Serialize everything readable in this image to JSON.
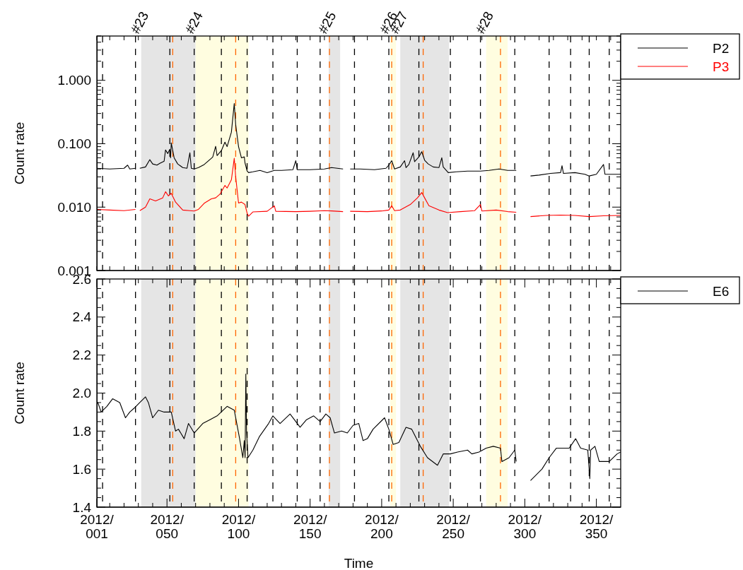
{
  "chart_data": [
    {
      "type": "line",
      "ylabel": "Count rate",
      "log": "y",
      "tick_labels": "y",
      "legend": "top right",
      "xlim": [
        "2012-01-01",
        "2013-01-01"
      ],
      "ylim": [
        0.001,
        5
      ],
      "xticks": [
        {
          "value": "2012-01-01",
          "label": null
        },
        {
          "value": "2012-01-10",
          "label": null
        },
        {
          "value": "2012-01-20",
          "label": null
        },
        {
          "value": "2012-01-30",
          "label": null
        },
        {
          "value": "2012-02-09",
          "label": null
        },
        {
          "value": "2012-02-19",
          "label": null
        },
        {
          "value": "2012-02-29",
          "label": null
        },
        {
          "value": "2012-03-10",
          "label": null
        },
        {
          "value": "2012-03-20",
          "label": null
        },
        {
          "value": "2012-03-30",
          "label": null
        },
        {
          "value": "2012-04-09",
          "label": null
        },
        {
          "value": "2012-04-19",
          "label": null
        },
        {
          "value": "2012-04-29",
          "label": null
        },
        {
          "value": "2012-05-09",
          "label": null
        },
        {
          "value": "2012-05-19",
          "label": null
        },
        {
          "value": "2012-05-29",
          "label": null
        },
        {
          "value": "2012-06-08",
          "label": null
        },
        {
          "value": "2012-06-18",
          "label": null
        },
        {
          "value": "2012-06-28",
          "label": null
        },
        {
          "value": "2012-07-08",
          "label": null
        },
        {
          "value": "2012-07-18",
          "label": null
        },
        {
          "value": "2012-07-28",
          "label": null
        },
        {
          "value": "2012-08-07",
          "label": null
        },
        {
          "value": "2012-08-17",
          "label": null
        },
        {
          "value": "2012-08-27",
          "label": null
        },
        {
          "value": "2012-09-06",
          "label": null
        },
        {
          "value": "2012-09-16",
          "label": null
        },
        {
          "value": "2012-09-26",
          "label": null
        },
        {
          "value": "2012-10-06",
          "label": null
        },
        {
          "value": "2012-10-16",
          "label": null
        },
        {
          "value": "2012-10-26",
          "label": null
        },
        {
          "value": "2012-11-05",
          "label": null
        },
        {
          "value": "2012-11-15",
          "label": null
        },
        {
          "value": "2012-11-25",
          "label": null
        },
        {
          "value": "2012-12-05",
          "label": null
        },
        {
          "value": "2012-12-15",
          "label": null
        },
        {
          "value": "2012-12-25",
          "label": null
        }
      ],
      "yticks": [
        {
          "value": 0.001,
          "label": "0.001"
        },
        {
          "value": 0.002,
          "label": null
        },
        {
          "value": 0.003,
          "label": null
        },
        {
          "value": 0.004,
          "label": null
        },
        {
          "value": 0.005,
          "label": null
        },
        {
          "value": 0.006,
          "label": null
        },
        {
          "value": 0.007,
          "label": null
        },
        {
          "value": 0.008,
          "label": null
        },
        {
          "value": 0.009,
          "label": null
        },
        {
          "value": 0.01,
          "label": "0.010"
        },
        {
          "value": 0.02,
          "label": null
        },
        {
          "value": 0.03,
          "label": null
        },
        {
          "value": 0.04,
          "label": null
        },
        {
          "value": 0.05,
          "label": null
        },
        {
          "value": 0.06,
          "label": null
        },
        {
          "value": 0.07,
          "label": null
        },
        {
          "value": 0.08,
          "label": null
        },
        {
          "value": 0.09,
          "label": null
        },
        {
          "value": 0.1,
          "label": "0.100"
        },
        {
          "value": 0.2,
          "label": null
        },
        {
          "value": 0.3,
          "label": null
        },
        {
          "value": 0.4,
          "label": null
        },
        {
          "value": 0.5,
          "label": null
        },
        {
          "value": 0.6,
          "label": null
        },
        {
          "value": 0.7,
          "label": null
        },
        {
          "value": 0.8,
          "label": null
        },
        {
          "value": 0.9,
          "label": null
        },
        {
          "value": 1,
          "label": "1.000"
        },
        {
          "value": 2,
          "label": null
        },
        {
          "value": 3,
          "label": null
        },
        {
          "value": 4,
          "label": null
        },
        {
          "value": 5,
          "label": null
        }
      ],
      "bands": [
        {
          "axis": "x",
          "from": "2012-02-01",
          "to": "2012-03-10",
          "label": "#23",
          "color": "#e5e5e5"
        },
        {
          "axis": "x",
          "from": "2012-03-10",
          "to": "2012-04-16",
          "label": "#24",
          "color": "#fffde0"
        },
        {
          "axis": "x",
          "from": "2012-06-11",
          "to": "2012-06-19",
          "label": "#25",
          "color": "#e5e5e5"
        },
        {
          "axis": "x",
          "from": "2012-07-24",
          "to": "2012-07-28",
          "label": "#26",
          "color": "#fffde0"
        },
        {
          "axis": "x",
          "from": "2012-07-31",
          "to": "2012-09-03",
          "label": "#27",
          "color": "#e5e5e5"
        },
        {
          "axis": "x",
          "from": "2012-09-29",
          "to": "2012-10-14",
          "label": "#28",
          "color": "#fffde0"
        }
      ],
      "ref_lines": [
        {
          "axis": "x",
          "value": "2012-01-05",
          "color": "#000000",
          "line_style": "dashed"
        },
        {
          "axis": "x",
          "value": "2012-01-28",
          "color": "#000000",
          "line_style": "dashed"
        },
        {
          "axis": "x",
          "value": "2012-02-21",
          "color": "#000000",
          "line_style": "dashed"
        },
        {
          "axis": "x",
          "value": "2012-03-09",
          "color": "#000000",
          "line_style": "dashed"
        },
        {
          "axis": "x",
          "value": "2012-03-28",
          "color": "#000000",
          "line_style": "dashed"
        },
        {
          "axis": "x",
          "value": "2012-04-15",
          "color": "#000000",
          "line_style": "dashed"
        },
        {
          "axis": "x",
          "value": "2012-05-03",
          "color": "#000000",
          "line_style": "dashed"
        },
        {
          "axis": "x",
          "value": "2012-05-20",
          "color": "#000000",
          "line_style": "dashed"
        },
        {
          "axis": "x",
          "value": "2012-06-05",
          "color": "#000000",
          "line_style": "dashed"
        },
        {
          "axis": "x",
          "value": "2012-06-29",
          "color": "#000000",
          "line_style": "dashed"
        },
        {
          "axis": "x",
          "value": "2012-07-23",
          "color": "#000000",
          "line_style": "dashed"
        },
        {
          "axis": "x",
          "value": "2012-08-13",
          "color": "#000000",
          "line_style": "dashed"
        },
        {
          "axis": "x",
          "value": "2012-09-04",
          "color": "#000000",
          "line_style": "dashed"
        },
        {
          "axis": "x",
          "value": "2012-09-25",
          "color": "#000000",
          "line_style": "dashed"
        },
        {
          "axis": "x",
          "value": "2012-10-19",
          "color": "#000000",
          "line_style": "dashed"
        },
        {
          "axis": "x",
          "value": "2012-11-12",
          "color": "#000000",
          "line_style": "dashed"
        },
        {
          "axis": "x",
          "value": "2012-11-27",
          "color": "#000000",
          "line_style": "dashed"
        },
        {
          "axis": "x",
          "value": "2012-12-10",
          "color": "#000000",
          "line_style": "dashed"
        },
        {
          "axis": "x",
          "value": "2012-12-24",
          "color": "#000000",
          "line_style": "dashed"
        },
        {
          "axis": "x",
          "value": "2012-02-23",
          "color": "#ff6600",
          "line_style": "dashed"
        },
        {
          "axis": "x",
          "value": "2012-04-07",
          "color": "#ff6600",
          "line_style": "dashed"
        },
        {
          "axis": "x",
          "value": "2012-06-11T12:00",
          "color": "#ff6600",
          "line_style": "dashed"
        },
        {
          "axis": "x",
          "value": "2012-07-25",
          "color": "#ff6600",
          "line_style": "dashed"
        },
        {
          "axis": "x",
          "value": "2012-08-16",
          "color": "#ff6600",
          "line_style": "dashed"
        },
        {
          "axis": "x",
          "value": "2012-10-09",
          "color": "#ff6600",
          "line_style": "dashed"
        }
      ],
      "series": [
        {
          "name": "P2",
          "color": "#000000",
          "x": [
            "2012-01-01",
            "2012-01-10",
            "2012-01-20",
            "2012-01-22T12:00",
            "2012-01-24",
            "2012-01-28",
            "2012-01-29",
            "2012-01-31",
            "2012-02-04",
            "2012-02-07",
            "2012-02-09",
            "2012-02-12",
            "2012-02-14",
            "2012-02-17",
            "2012-02-18",
            "2012-02-19T12:00",
            "2012-02-21",
            "2012-02-21T12:00",
            "2012-02-22",
            "2012-02-24",
            "2012-02-26T12:00",
            "2012-03-01",
            "2012-03-04",
            "2012-03-06",
            "2012-03-07",
            "2012-03-09",
            "2012-03-12",
            "2012-03-16",
            "2012-03-21",
            "2012-03-22",
            "2012-03-24",
            "2012-03-25",
            "2012-03-28",
            "2012-03-30T12:00",
            "2012-04-01",
            "2012-04-04",
            "2012-04-06",
            "2012-04-07",
            "2012-04-09",
            "2012-04-11",
            "2012-04-13",
            "2012-04-13T12:00",
            "2012-04-15",
            "2012-04-16",
            "2012-04-19",
            "2012-04-24",
            "2012-04-29",
            "2012-05-04",
            "2012-05-09",
            "2012-05-17",
            "2012-05-19",
            "2012-05-20",
            "2012-05-29",
            "2012-06-08",
            "2012-06-13",
            "2012-06-21",
            "2012-06-21T12:00",
            "2012-06-26",
            "2012-07-03",
            "2012-07-13",
            "2012-07-21",
            "2012-07-23",
            "2012-07-25",
            "2012-07-27",
            "2012-07-31",
            "2012-08-03",
            "2012-08-04",
            "2012-08-06",
            "2012-08-09",
            "2012-08-10",
            "2012-08-13",
            "2012-08-15",
            "2012-08-17",
            "2012-08-19T12:00",
            "2012-08-23",
            "2012-08-27",
            "2012-08-29",
            "2012-08-30",
            "2012-09-02T12:00",
            "2012-09-08",
            "2012-09-16",
            "2012-09-25",
            "2012-10-01",
            "2012-10-08",
            "2012-10-14",
            "2012-10-20",
            "2012-10-21",
            "2012-10-30",
            "2012-11-05",
            "2012-11-13",
            "2012-11-20",
            "2012-11-21",
            "2012-11-22",
            "2012-11-30",
            "2012-12-07",
            "2012-12-10",
            "2012-12-15",
            "2012-12-20",
            "2012-12-21",
            "2012-12-27",
            "2013-01-01"
          ],
          "values": [
            0.041,
            0.04,
            0.041,
            0.046,
            0.04,
            0.041,
            null,
            0.041,
            0.043,
            0.056,
            0.048,
            0.046,
            0.049,
            0.053,
            0.08,
            0.07,
            0.082,
            0.06,
            0.103,
            0.06,
            0.048,
            0.042,
            0.041,
            0.072,
            0.041,
            0.04,
            0.042,
            0.047,
            0.059,
            0.062,
            0.091,
            0.065,
            0.078,
            0.106,
            0.09,
            0.152,
            0.43,
            0.2,
            0.09,
            0.06,
            0.062,
            0.05,
            0.037,
            0.035,
            0.036,
            0.038,
            0.035,
            0.038,
            0.038,
            0.039,
            0.054,
            0.039,
            0.039,
            0.04,
            0.042,
            0.04,
            null,
            0.04,
            0.04,
            0.039,
            0.041,
            0.046,
            0.054,
            0.04,
            0.043,
            0.054,
            0.042,
            0.047,
            0.072,
            0.052,
            0.062,
            0.075,
            0.055,
            0.048,
            0.043,
            0.042,
            0.06,
            0.043,
            0.035,
            0.036,
            0.037,
            0.037,
            0.038,
            0.04,
            0.038,
            0.038,
            null,
            0.031,
            0.032,
            0.034,
            0.035,
            0.045,
            0.034,
            0.035,
            0.033,
            0.031,
            0.033,
            0.047,
            0.033,
            0.033,
            0.033
          ]
        },
        {
          "name": "P3",
          "color": "#ff0000",
          "x": [
            "2012-01-01",
            "2012-01-10",
            "2012-01-20",
            "2012-01-28",
            "2012-01-29",
            "2012-01-31",
            "2012-02-04",
            "2012-02-07",
            "2012-02-11",
            "2012-02-16",
            "2012-02-18",
            "2012-02-20",
            "2012-02-22",
            "2012-02-25",
            "2012-03-01",
            "2012-03-06",
            "2012-03-09",
            "2012-03-12",
            "2012-03-16",
            "2012-03-21",
            "2012-03-24",
            "2012-03-27",
            "2012-03-30T12:00",
            "2012-04-01",
            "2012-04-04",
            "2012-04-06",
            "2012-04-07",
            "2012-04-09",
            "2012-04-11",
            "2012-04-13T12:00",
            "2012-04-15",
            "2012-04-16",
            "2012-04-19",
            "2012-04-29",
            "2012-05-04",
            "2012-05-05",
            "2012-05-19",
            "2012-05-29",
            "2012-06-08",
            "2012-06-13",
            "2012-06-21",
            "2012-06-21T12:00",
            "2012-06-26",
            "2012-07-08",
            "2012-07-18",
            "2012-07-23",
            "2012-07-25",
            "2012-07-27",
            "2012-07-31",
            "2012-08-07",
            "2012-08-12",
            "2012-08-15",
            "2012-08-17",
            "2012-08-20",
            "2012-08-27",
            "2012-09-02",
            "2012-09-11",
            "2012-09-21",
            "2012-09-25",
            "2012-09-26",
            "2012-10-06",
            "2012-10-14",
            "2012-10-20",
            "2012-10-21",
            "2012-10-30",
            "2012-11-10",
            "2012-11-20",
            "2012-11-30",
            "2012-12-10",
            "2012-12-20",
            "2013-01-01"
          ],
          "values": [
            0.0092,
            0.009,
            0.0088,
            0.0092,
            null,
            0.0088,
            0.01,
            0.0135,
            0.0125,
            0.014,
            0.0175,
            0.015,
            0.0165,
            0.012,
            0.009,
            0.0088,
            0.0087,
            0.0092,
            0.0115,
            0.0135,
            0.014,
            0.016,
            0.022,
            0.02,
            0.027,
            0.059,
            0.03,
            0.0116,
            0.012,
            0.011,
            0.008,
            0.0072,
            0.0084,
            0.0086,
            0.0105,
            0.0086,
            0.0085,
            0.0086,
            0.0088,
            0.0087,
            0.0085,
            null,
            0.0086,
            0.0085,
            0.0087,
            0.009,
            0.0105,
            0.0088,
            0.009,
            0.011,
            0.014,
            0.017,
            0.014,
            0.0105,
            0.009,
            0.0082,
            0.0085,
            0.0088,
            0.011,
            0.0087,
            0.009,
            0.0085,
            0.0083,
            null,
            0.0071,
            0.0074,
            0.0075,
            0.0074,
            0.0071,
            0.0073,
            0.0074
          ]
        }
      ]
    },
    {
      "type": "line",
      "ylabel": "Count rate",
      "xlabel": "Time",
      "legend": "top right",
      "xlim": [
        "2012-01-01",
        "2013-01-01"
      ],
      "ylim": [
        1.4,
        2.6
      ],
      "xticks": [
        {
          "value": "2012-01-01",
          "label": "2012/001"
        },
        {
          "value": "2012-01-10",
          "label": null
        },
        {
          "value": "2012-01-20",
          "label": null
        },
        {
          "value": "2012-01-30",
          "label": null
        },
        {
          "value": "2012-02-09",
          "label": null
        },
        {
          "value": "2012-02-19",
          "label": "2012/050"
        },
        {
          "value": "2012-02-29",
          "label": null
        },
        {
          "value": "2012-03-10",
          "label": null
        },
        {
          "value": "2012-03-20",
          "label": null
        },
        {
          "value": "2012-03-30",
          "label": null
        },
        {
          "value": "2012-04-09",
          "label": "2012/100"
        },
        {
          "value": "2012-04-19",
          "label": null
        },
        {
          "value": "2012-04-29",
          "label": null
        },
        {
          "value": "2012-05-09",
          "label": null
        },
        {
          "value": "2012-05-19",
          "label": null
        },
        {
          "value": "2012-05-29",
          "label": "2012/150"
        },
        {
          "value": "2012-06-08",
          "label": null
        },
        {
          "value": "2012-06-18",
          "label": null
        },
        {
          "value": "2012-06-28",
          "label": null
        },
        {
          "value": "2012-07-08",
          "label": null
        },
        {
          "value": "2012-07-18",
          "label": "2012/200"
        },
        {
          "value": "2012-07-28",
          "label": null
        },
        {
          "value": "2012-08-07",
          "label": null
        },
        {
          "value": "2012-08-17",
          "label": null
        },
        {
          "value": "2012-08-27",
          "label": null
        },
        {
          "value": "2012-09-06",
          "label": "2012/250"
        },
        {
          "value": "2012-09-16",
          "label": null
        },
        {
          "value": "2012-09-26",
          "label": null
        },
        {
          "value": "2012-10-06",
          "label": null
        },
        {
          "value": "2012-10-16",
          "label": null
        },
        {
          "value": "2012-10-26",
          "label": "2012/300"
        },
        {
          "value": "2012-11-05",
          "label": null
        },
        {
          "value": "2012-11-15",
          "label": null
        },
        {
          "value": "2012-11-25",
          "label": null
        },
        {
          "value": "2012-12-05",
          "label": null
        },
        {
          "value": "2012-12-15",
          "label": "2012/350"
        },
        {
          "value": "2012-12-25",
          "label": null
        }
      ],
      "yticks": [
        1.4,
        {
          "value": 1.45,
          "label": null
        },
        {
          "value": 1.5,
          "label": null
        },
        {
          "value": 1.55,
          "label": null
        },
        1.6,
        {
          "value": 1.65,
          "label": null
        },
        {
          "value": 1.7,
          "label": null
        },
        {
          "value": 1.75,
          "label": null
        },
        1.8,
        {
          "value": 1.85,
          "label": null
        },
        {
          "value": 1.9,
          "label": null
        },
        {
          "value": 1.95,
          "label": null
        },
        {
          "value": 2.0,
          "label": "2.0"
        },
        {
          "value": 2.05,
          "label": null
        },
        {
          "value": 2.1,
          "label": null
        },
        {
          "value": 2.15,
          "label": null
        },
        2.2,
        {
          "value": 2.25,
          "label": null
        },
        {
          "value": 2.3,
          "label": null
        },
        {
          "value": 2.35,
          "label": null
        },
        2.4,
        {
          "value": 2.45,
          "label": null
        },
        {
          "value": 2.5,
          "label": null
        },
        {
          "value": 2.55,
          "label": null
        },
        2.6
      ],
      "bands": [
        {
          "axis": "x",
          "from": "2012-02-01",
          "to": "2012-03-10",
          "color": "#e5e5e5"
        },
        {
          "axis": "x",
          "from": "2012-03-10",
          "to": "2012-04-16",
          "color": "#fffde0"
        },
        {
          "axis": "x",
          "from": "2012-06-11",
          "to": "2012-06-19",
          "color": "#e5e5e5"
        },
        {
          "axis": "x",
          "from": "2012-07-24",
          "to": "2012-07-28",
          "color": "#fffde0"
        },
        {
          "axis": "x",
          "from": "2012-07-31",
          "to": "2012-09-03",
          "color": "#e5e5e5"
        },
        {
          "axis": "x",
          "from": "2012-09-29",
          "to": "2012-10-14",
          "color": "#fffde0"
        }
      ],
      "ref_lines": [
        {
          "axis": "x",
          "value": "2012-01-05",
          "color": "#000000",
          "line_style": "dashed"
        },
        {
          "axis": "x",
          "value": "2012-01-28",
          "color": "#000000",
          "line_style": "dashed"
        },
        {
          "axis": "x",
          "value": "2012-02-21",
          "color": "#000000",
          "line_style": "dashed"
        },
        {
          "axis": "x",
          "value": "2012-03-09",
          "color": "#000000",
          "line_style": "dashed"
        },
        {
          "axis": "x",
          "value": "2012-03-28",
          "color": "#000000",
          "line_style": "dashed"
        },
        {
          "axis": "x",
          "value": "2012-04-15",
          "color": "#000000",
          "line_style": "dashed"
        },
        {
          "axis": "x",
          "value": "2012-05-03",
          "color": "#000000",
          "line_style": "dashed"
        },
        {
          "axis": "x",
          "value": "2012-05-20",
          "color": "#000000",
          "line_style": "dashed"
        },
        {
          "axis": "x",
          "value": "2012-06-05",
          "color": "#000000",
          "line_style": "dashed"
        },
        {
          "axis": "x",
          "value": "2012-06-29",
          "color": "#000000",
          "line_style": "dashed"
        },
        {
          "axis": "x",
          "value": "2012-07-23",
          "color": "#000000",
          "line_style": "dashed"
        },
        {
          "axis": "x",
          "value": "2012-08-13",
          "color": "#000000",
          "line_style": "dashed"
        },
        {
          "axis": "x",
          "value": "2012-09-04",
          "color": "#000000",
          "line_style": "dashed"
        },
        {
          "axis": "x",
          "value": "2012-09-25",
          "color": "#000000",
          "line_style": "dashed"
        },
        {
          "axis": "x",
          "value": "2012-10-19",
          "color": "#000000",
          "line_style": "dashed"
        },
        {
          "axis": "x",
          "value": "2012-11-12",
          "color": "#000000",
          "line_style": "dashed"
        },
        {
          "axis": "x",
          "value": "2012-11-27",
          "color": "#000000",
          "line_style": "dashed"
        },
        {
          "axis": "x",
          "value": "2012-12-10",
          "color": "#000000",
          "line_style": "dashed"
        },
        {
          "axis": "x",
          "value": "2012-12-24",
          "color": "#000000",
          "line_style": "dashed"
        },
        {
          "axis": "x",
          "value": "2012-02-23",
          "color": "#ff6600",
          "line_style": "dashed"
        },
        {
          "axis": "x",
          "value": "2012-04-07",
          "color": "#ff6600",
          "line_style": "dashed"
        },
        {
          "axis": "x",
          "value": "2012-06-11T12:00",
          "color": "#ff6600",
          "line_style": "dashed"
        },
        {
          "axis": "x",
          "value": "2012-07-25",
          "color": "#ff6600",
          "line_style": "dashed"
        },
        {
          "axis": "x",
          "value": "2012-08-16",
          "color": "#ff6600",
          "line_style": "dashed"
        },
        {
          "axis": "x",
          "value": "2012-10-09",
          "color": "#ff6600",
          "line_style": "dashed"
        }
      ],
      "series": [
        {
          "name": "E6",
          "color": "#000000",
          "x": [
            "2012-01-01",
            "2012-01-01T17:00",
            "2012-01-04",
            "2012-01-08",
            "2012-01-12",
            "2012-01-17",
            "2012-01-21",
            "2012-01-24",
            "2012-01-27",
            "2012-01-31",
            "2012-02-04",
            "2012-02-06",
            "2012-02-09",
            "2012-02-13",
            "2012-02-17",
            "2012-02-22",
            "2012-02-25",
            "2012-02-27",
            "2012-03-02",
            "2012-03-05",
            "2012-03-09",
            "2012-03-15",
            "2012-03-20",
            "2012-03-25",
            "2012-04-01",
            "2012-04-06",
            "2012-04-09T12:00",
            "2012-04-12",
            "2012-04-13",
            "2012-04-13T14:00",
            "2012-04-14T02:00",
            "2012-04-14T14:00",
            "2012-04-15T14:00",
            "2012-04-19",
            "2012-04-23T12:00",
            "2012-04-30",
            "2012-05-03",
            "2012-05-08",
            "2012-05-15",
            "2012-05-22",
            "2012-05-26T12:00",
            "2012-05-31T12:00",
            "2012-06-05",
            "2012-06-09",
            "2012-06-12",
            "2012-06-15",
            "2012-06-20",
            "2012-06-24",
            "2012-06-28",
            "2012-07-02",
            "2012-07-05",
            "2012-07-08",
            "2012-07-12",
            "2012-07-20",
            "2012-07-23",
            "2012-07-26",
            "2012-07-30",
            "2012-08-04",
            "2012-08-08",
            "2012-08-14",
            "2012-08-19",
            "2012-08-26",
            "2012-08-30",
            "2012-09-04",
            "2012-09-09",
            "2012-09-16",
            "2012-09-19",
            "2012-09-24",
            "2012-09-29",
            "2012-10-04",
            "2012-10-09",
            "2012-10-10",
            "2012-10-15",
            "2012-10-19",
            "2012-10-20",
            "2012-10-21",
            "2012-10-30",
            "2012-11-07",
            "2012-11-12",
            "2012-11-17",
            "2012-11-26",
            "2012-11-30T12:00",
            "2012-12-04",
            "2012-12-09",
            "2012-12-10T10:00",
            "2012-12-11",
            "2012-12-14",
            "2012-12-17",
            "2012-12-24",
            "2012-12-29T12:00",
            "2013-01-01"
          ],
          "values": [
            1.95,
            1.95,
            1.9,
            1.93,
            1.97,
            1.95,
            1.87,
            1.9,
            1.92,
            1.95,
            1.98,
            1.95,
            1.87,
            1.91,
            1.9,
            1.9,
            1.8,
            1.81,
            1.76,
            1.84,
            1.79,
            1.84,
            1.86,
            1.88,
            1.93,
            1.91,
            1.77,
            1.66,
            1.75,
            1.66,
            2.1,
            1.8,
            1.66,
            1.7,
            1.77,
            1.84,
            1.88,
            1.84,
            1.89,
            1.82,
            1.86,
            1.88,
            1.85,
            1.89,
            1.87,
            1.79,
            1.8,
            1.79,
            1.83,
            1.84,
            1.75,
            1.76,
            1.81,
            1.87,
            1.81,
            1.73,
            1.74,
            1.82,
            1.81,
            1.72,
            1.66,
            1.62,
            1.68,
            1.68,
            1.69,
            1.7,
            1.68,
            1.69,
            1.71,
            1.72,
            1.71,
            1.64,
            1.66,
            1.7,
            1.64,
            null,
            1.54,
            1.6,
            1.66,
            1.71,
            1.71,
            1.76,
            1.71,
            1.7,
            1.55,
            1.7,
            1.72,
            1.64,
            1.64,
            1.68,
            1.69
          ]
        }
      ]
    }
  ]
}
